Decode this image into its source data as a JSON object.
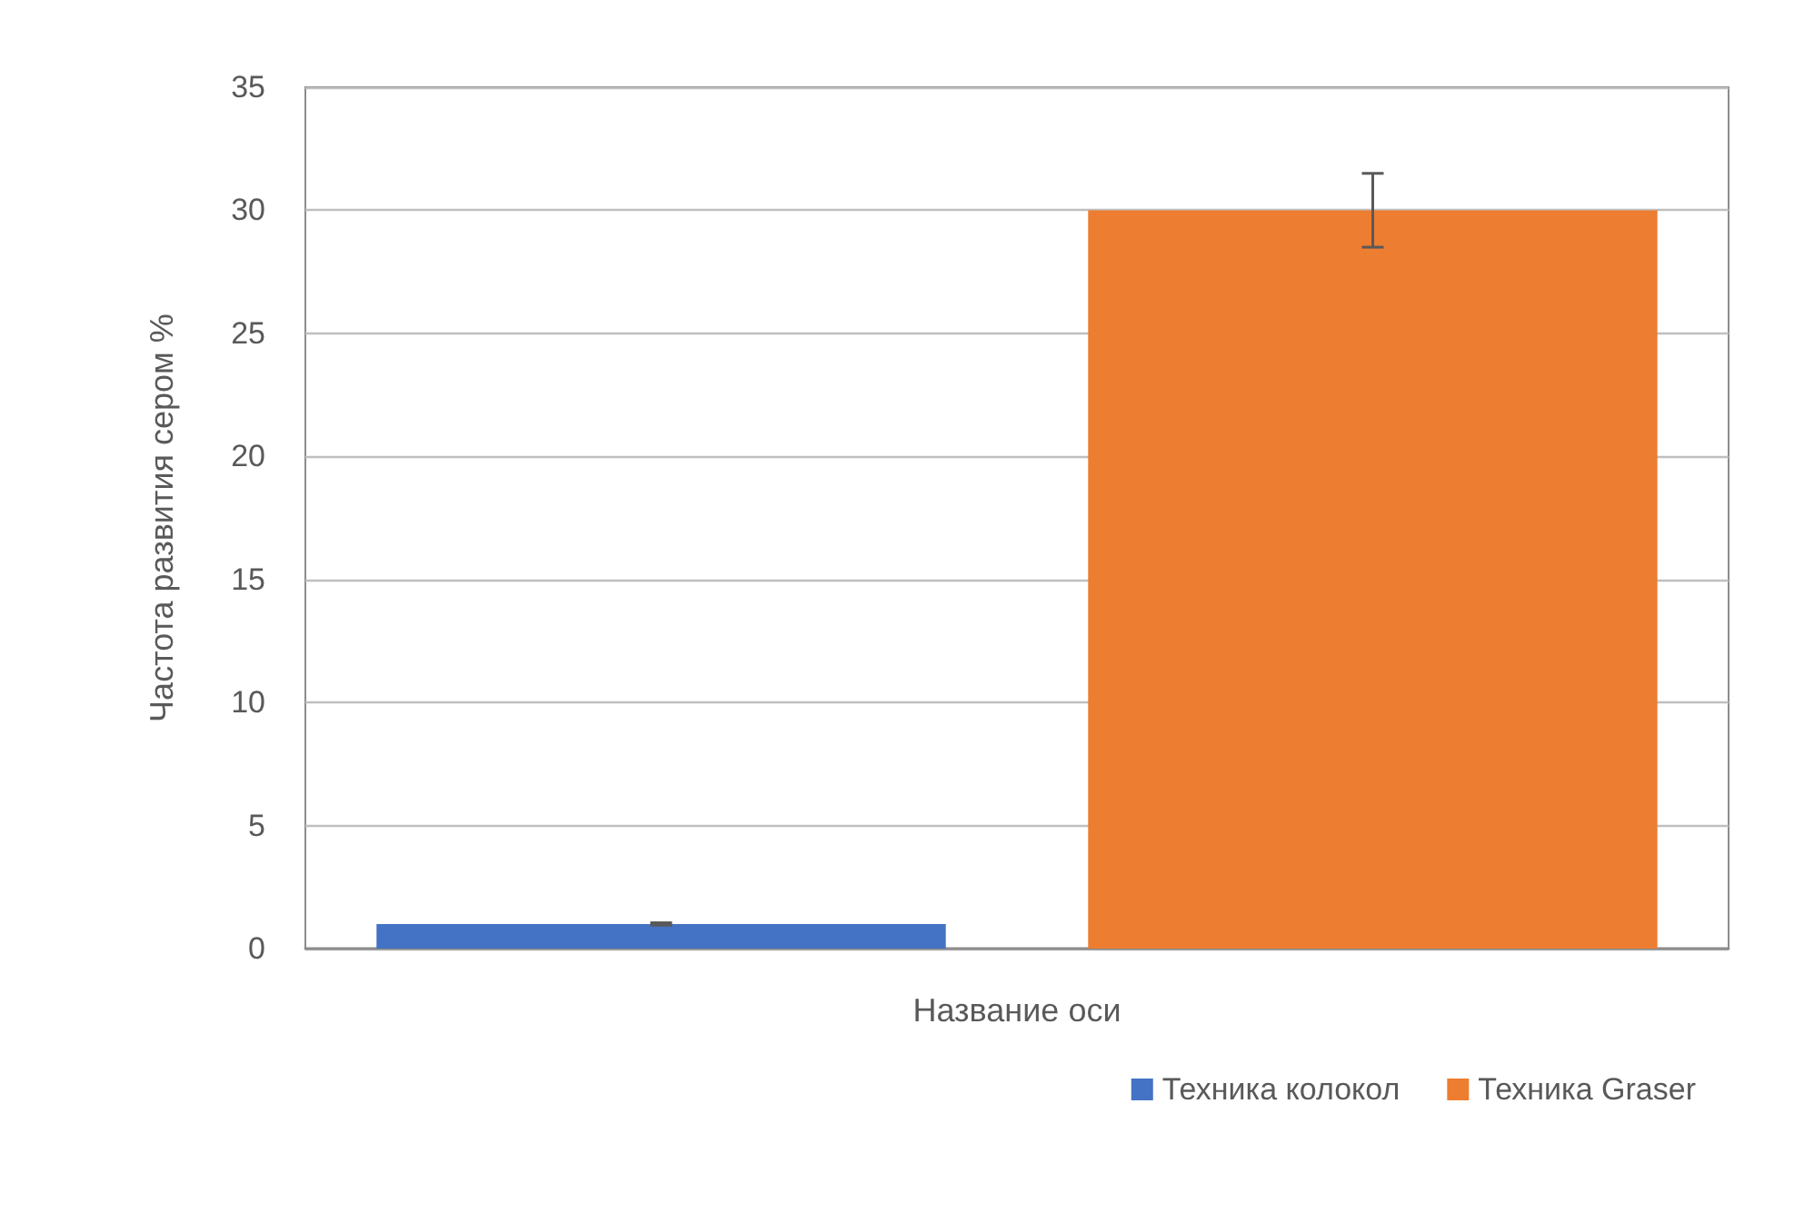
{
  "chart_data": {
    "type": "bar",
    "xlabel": "Название оси",
    "ylabel": "Частота развития сером %",
    "categories": [
      null
    ],
    "series": [
      {
        "name": "Техника колокол",
        "color": "#4472c4",
        "values": [
          1
        ],
        "errors": [
          0.05
        ]
      },
      {
        "name": "Техника Graser",
        "color": "#ed7d31",
        "values": [
          30
        ],
        "errors": [
          1.5
        ]
      }
    ],
    "ylim": [
      0,
      35
    ],
    "yticks": [
      0,
      5,
      10,
      15,
      20,
      25,
      30,
      35
    ],
    "grid": "y",
    "legend": "bottom right"
  }
}
